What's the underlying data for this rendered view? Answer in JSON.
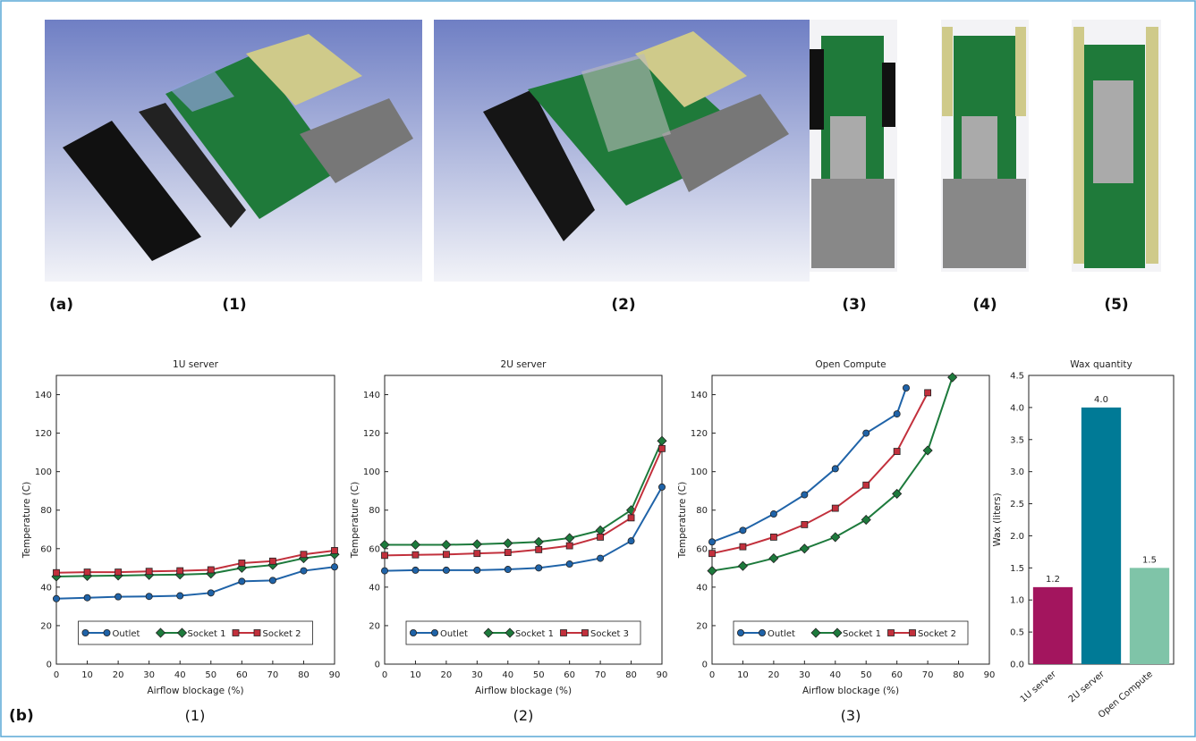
{
  "panel_a": {
    "label": "(a)",
    "views": [
      "(1)",
      "(2)",
      "(3)",
      "(4)",
      "(5)"
    ]
  },
  "panel_b": {
    "label": "(b)",
    "sublabels": [
      "(1)",
      "(2)",
      "(3)"
    ]
  },
  "chart_data": [
    {
      "type": "line",
      "title": "1U server",
      "x_label": "Airflow blockage (%)",
      "y_label": "Temperature (C)",
      "x": [
        0,
        10,
        20,
        30,
        40,
        50,
        60,
        70,
        80,
        90
      ],
      "xlim": [
        0,
        90
      ],
      "xticks": [
        0,
        10,
        20,
        30,
        40,
        50,
        60,
        70,
        80,
        90
      ],
      "ylim": [
        0,
        150
      ],
      "yticks": [
        0,
        20,
        40,
        60,
        80,
        100,
        120,
        140
      ],
      "legend": "lower center",
      "series": [
        {
          "name": "Outlet",
          "color": "#1f63a8",
          "marker": "circle",
          "values": [
            34,
            34.5,
            35,
            35.2,
            35.5,
            37,
            43,
            43.5,
            48.5,
            50.5
          ]
        },
        {
          "name": "Socket 1",
          "color": "#1d7a3c",
          "marker": "diamond",
          "values": [
            45.5,
            45.8,
            46,
            46.3,
            46.5,
            47,
            50,
            51.5,
            55,
            57
          ]
        },
        {
          "name": "Socket 2",
          "color": "#c2303c",
          "marker": "square",
          "values": [
            47.5,
            47.8,
            47.8,
            48.2,
            48.5,
            49,
            52.5,
            53.5,
            57,
            59
          ]
        }
      ]
    },
    {
      "type": "line",
      "title": "2U server",
      "x_label": "Airflow blockage (%)",
      "y_label": "Temperature (C)",
      "x": [
        0,
        10,
        20,
        30,
        40,
        50,
        60,
        70,
        80,
        90
      ],
      "xlim": [
        0,
        90
      ],
      "xticks": [
        0,
        10,
        20,
        30,
        40,
        50,
        60,
        70,
        80,
        90
      ],
      "ylim": [
        0,
        150
      ],
      "yticks": [
        0,
        20,
        40,
        60,
        80,
        100,
        120,
        140
      ],
      "legend": "lower center",
      "series": [
        {
          "name": "Outlet",
          "color": "#1f63a8",
          "marker": "circle",
          "values": [
            48.5,
            48.8,
            48.8,
            48.8,
            49.2,
            50,
            52,
            55,
            64,
            92
          ]
        },
        {
          "name": "Socket 1",
          "color": "#1d7a3c",
          "marker": "diamond",
          "values": [
            62,
            62,
            62,
            62.3,
            62.8,
            63.5,
            65.5,
            69.5,
            80,
            116
          ]
        },
        {
          "name": "Socket 3",
          "color": "#c2303c",
          "marker": "square",
          "values": [
            56.5,
            56.8,
            57,
            57.5,
            58,
            59.5,
            61.5,
            66,
            76,
            112
          ]
        }
      ]
    },
    {
      "type": "line",
      "title": "Open Compute",
      "x_label": "Airflow blockage (%)",
      "y_label": "Temperature (C)",
      "xlim": [
        0,
        90
      ],
      "xticks": [
        0,
        10,
        20,
        30,
        40,
        50,
        60,
        70,
        80,
        90
      ],
      "ylim": [
        0,
        150
      ],
      "yticks": [
        0,
        20,
        40,
        60,
        80,
        100,
        120,
        140
      ],
      "legend": "lower center",
      "series": [
        {
          "name": "Outlet",
          "color": "#1f63a8",
          "marker": "circle",
          "x": [
            0,
            10,
            20,
            30,
            40,
            50,
            60,
            63
          ],
          "values": [
            63.5,
            69.5,
            78,
            88,
            101.5,
            120,
            130,
            143.5
          ]
        },
        {
          "name": "Socket 1",
          "color": "#1d7a3c",
          "marker": "diamond",
          "x": [
            0,
            10,
            20,
            30,
            40,
            50,
            60,
            70,
            78
          ],
          "values": [
            48.5,
            51,
            55,
            60,
            66,
            75,
            88.5,
            111,
            149
          ]
        },
        {
          "name": "Socket 2",
          "color": "#c2303c",
          "marker": "square",
          "x": [
            0,
            10,
            20,
            30,
            40,
            50,
            60,
            70
          ],
          "values": [
            57.5,
            61,
            66,
            72.5,
            81,
            93,
            110.5,
            141
          ]
        }
      ]
    },
    {
      "type": "bar",
      "title": "Wax quantity",
      "y_label": "Wax (liters)",
      "categories": [
        "1U server",
        "2U server",
        "Open Compute"
      ],
      "values": [
        1.2,
        4.0,
        1.5
      ],
      "value_labels": [
        "1.2",
        "4.0",
        "1.5"
      ],
      "colors": [
        "#a3155e",
        "#007a96",
        "#7fc4a8"
      ],
      "ylim": [
        0,
        4.5
      ],
      "yticks": [
        {
          "value": 0,
          "label": "0.0"
        },
        {
          "value": 0.5,
          "label": "0.5"
        },
        {
          "value": 1,
          "label": "1.0"
        },
        {
          "value": 1.5,
          "label": "1.5"
        },
        {
          "value": 2,
          "label": "2.0"
        },
        {
          "value": 2.5,
          "label": "2.5"
        },
        {
          "value": 3,
          "label": "3.0"
        },
        {
          "value": 3.5,
          "label": "3.5"
        },
        {
          "value": 4,
          "label": "4.0"
        },
        {
          "value": 4.5,
          "label": "4.5"
        }
      ]
    }
  ]
}
